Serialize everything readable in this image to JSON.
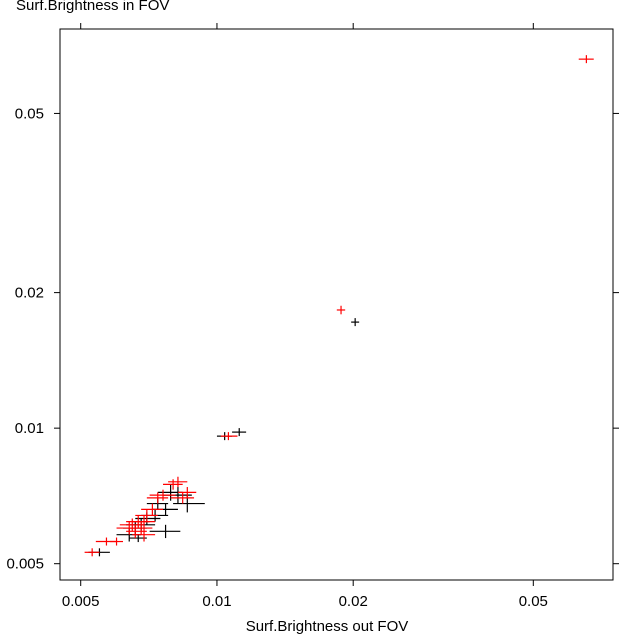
{
  "chart_data": {
    "type": "scatter",
    "title": "Surf.Brightness in FOV",
    "xlabel": "Surf.Brightness out FOV",
    "ylabel": "",
    "xscale": "log",
    "yscale": "log",
    "xlim": [
      0.0045,
      0.075
    ],
    "ylim": [
      0.0046,
      0.077
    ],
    "xticks": [
      0.005,
      0.01,
      0.02,
      0.05
    ],
    "xtick_labels": [
      "0.005",
      "0.01",
      "0.02",
      "0.05"
    ],
    "yticks": [
      0.005,
      0.01,
      0.02,
      0.05
    ],
    "ytick_labels": [
      "0.005",
      "0.01",
      "0.02",
      "0.05"
    ],
    "grid": false,
    "series": [
      {
        "color": "#000000",
        "marker": "cross-errorbar",
        "points": [
          {
            "x": 0.0112,
            "y": 0.0098,
            "xerr": [
              0.0004,
              0.0004
            ],
            "yerr": [
              0.0001,
              0.0001
            ]
          },
          {
            "x": 0.0104,
            "y": 0.0096,
            "xerr": [
              0.0004,
              0.0004
            ],
            "yerr": [
              0.0001,
              0.0001
            ]
          },
          {
            "x": 0.0202,
            "y": 0.0172,
            "xerr": [
              0.0002,
              0.0002
            ],
            "yerr": [
              0.0,
              0.0
            ]
          },
          {
            "x": 0.0055,
            "y": 0.0053,
            "xerr": [
              0.0003,
              0.0003
            ],
            "yerr": [
              0.0001,
              0.0001
            ]
          },
          {
            "x": 0.0086,
            "y": 0.0068,
            "xerr": [
              0.0006,
              0.0008
            ],
            "yerr": [
              0.0003,
              0.0003
            ]
          },
          {
            "x": 0.0082,
            "y": 0.0071,
            "xerr": [
              0.0006,
              0.0006
            ],
            "yerr": [
              0.0003,
              0.0003
            ]
          },
          {
            "x": 0.0079,
            "y": 0.0072,
            "xerr": [
              0.0005,
              0.0005
            ],
            "yerr": [
              0.0003,
              0.0003
            ]
          },
          {
            "x": 0.0077,
            "y": 0.0066,
            "xerr": [
              0.0005,
              0.0005
            ],
            "yerr": [
              0.0002,
              0.0002
            ]
          },
          {
            "x": 0.0073,
            "y": 0.0064,
            "xerr": [
              0.0005,
              0.0005
            ],
            "yerr": [
              0.0002,
              0.0002
            ]
          },
          {
            "x": 0.007,
            "y": 0.0063,
            "xerr": [
              0.0004,
              0.0005
            ],
            "yerr": [
              0.0002,
              0.0002
            ]
          },
          {
            "x": 0.0068,
            "y": 0.0061,
            "xerr": [
              0.0005,
              0.0005
            ],
            "yerr": [
              0.0002,
              0.0002
            ]
          },
          {
            "x": 0.0066,
            "y": 0.006,
            "xerr": [
              0.0004,
              0.0004
            ],
            "yerr": [
              0.0002,
              0.0002
            ]
          },
          {
            "x": 0.0064,
            "y": 0.0058,
            "xerr": [
              0.0004,
              0.0004
            ],
            "yerr": [
              0.0002,
              0.0002
            ]
          },
          {
            "x": 0.0077,
            "y": 0.0059,
            "xerr": [
              0.0006,
              0.0006
            ],
            "yerr": [
              0.0002,
              0.0002
            ]
          },
          {
            "x": 0.0067,
            "y": 0.0057,
            "xerr": [
              0.0003,
              0.0003
            ],
            "yerr": [
              0.0001,
              0.0001
            ]
          },
          {
            "x": 0.0074,
            "y": 0.0068,
            "xerr": [
              0.0004,
              0.0004
            ],
            "yerr": [
              0.0002,
              0.0002
            ]
          }
        ]
      },
      {
        "color": "#ff0000",
        "marker": "cross-errorbar",
        "points": [
          {
            "x": 0.0655,
            "y": 0.066,
            "xerr": [
              0.0025,
              0.0025
            ],
            "yerr": [
              0.001,
              0.001
            ]
          },
          {
            "x": 0.0188,
            "y": 0.0183,
            "xerr": [
              0.0004,
              0.0004
            ],
            "yerr": [
              0.0004,
              0.0004
            ]
          },
          {
            "x": 0.0106,
            "y": 0.0096,
            "xerr": [
              0.0004,
              0.0005
            ],
            "yerr": [
              0.0001,
              0.0001
            ]
          },
          {
            "x": 0.0053,
            "y": 0.0053,
            "xerr": [
              0.0002,
              0.0002
            ],
            "yerr": [
              0.0001,
              0.0001
            ]
          },
          {
            "x": 0.0057,
            "y": 0.0056,
            "xerr": [
              0.0003,
              0.0003
            ],
            "yerr": [
              0.0001,
              0.0001
            ]
          },
          {
            "x": 0.006,
            "y": 0.0056,
            "xerr": [
              0.0002,
              0.0002
            ],
            "yerr": [
              0.0001,
              0.0001
            ]
          },
          {
            "x": 0.0064,
            "y": 0.006,
            "xerr": [
              0.0004,
              0.0004
            ],
            "yerr": [
              0.0002,
              0.0002
            ]
          },
          {
            "x": 0.0065,
            "y": 0.0061,
            "xerr": [
              0.0004,
              0.0004
            ],
            "yerr": [
              0.0002,
              0.0002
            ]
          },
          {
            "x": 0.0066,
            "y": 0.0059,
            "xerr": [
              0.0003,
              0.0004
            ],
            "yerr": [
              0.0002,
              0.0002
            ]
          },
          {
            "x": 0.0067,
            "y": 0.0062,
            "xerr": [
              0.0004,
              0.0004
            ],
            "yerr": [
              0.0002,
              0.0002
            ]
          },
          {
            "x": 0.0068,
            "y": 0.006,
            "xerr": [
              0.0004,
              0.0004
            ],
            "yerr": [
              0.0002,
              0.0002
            ]
          },
          {
            "x": 0.0069,
            "y": 0.0062,
            "xerr": [
              0.0004,
              0.0004
            ],
            "yerr": [
              0.0002,
              0.0002
            ]
          },
          {
            "x": 0.007,
            "y": 0.0064,
            "xerr": [
              0.0004,
              0.0004
            ],
            "yerr": [
              0.0002,
              0.0002
            ]
          },
          {
            "x": 0.0072,
            "y": 0.0066,
            "xerr": [
              0.0004,
              0.0004
            ],
            "yerr": [
              0.0002,
              0.0002
            ]
          },
          {
            "x": 0.0074,
            "y": 0.007,
            "xerr": [
              0.0004,
              0.0004
            ],
            "yerr": [
              0.0002,
              0.0002
            ]
          },
          {
            "x": 0.0076,
            "y": 0.0071,
            "xerr": [
              0.0005,
              0.0005
            ],
            "yerr": [
              0.0002,
              0.0002
            ]
          },
          {
            "x": 0.008,
            "y": 0.0075,
            "xerr": [
              0.0004,
              0.0004
            ],
            "yerr": [
              0.0002,
              0.0002
            ]
          },
          {
            "x": 0.0082,
            "y": 0.0076,
            "xerr": [
              0.0004,
              0.0004
            ],
            "yerr": [
              0.0002,
              0.0002
            ]
          },
          {
            "x": 0.0084,
            "y": 0.007,
            "xerr": [
              0.0005,
              0.0005
            ],
            "yerr": [
              0.0002,
              0.0002
            ]
          },
          {
            "x": 0.0086,
            "y": 0.0072,
            "xerr": [
              0.0004,
              0.0004
            ],
            "yerr": [
              0.0002,
              0.0002
            ]
          },
          {
            "x": 0.0069,
            "y": 0.0058,
            "xerr": [
              0.0004,
              0.0004
            ],
            "yerr": [
              0.0002,
              0.0002
            ]
          }
        ]
      }
    ]
  }
}
